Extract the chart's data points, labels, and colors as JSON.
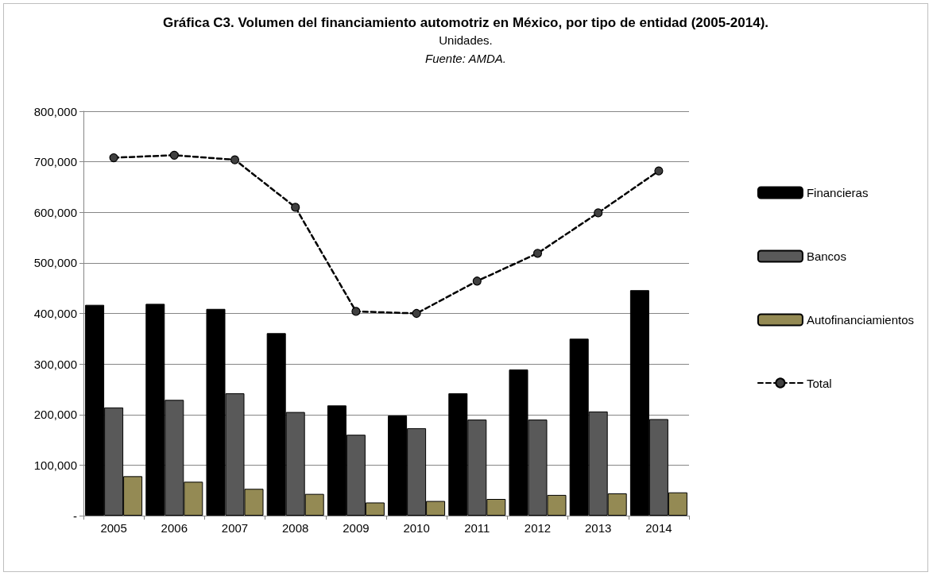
{
  "chart_data": {
    "type": "bar",
    "title": "Gráfica C3. Volumen del financiamiento automotriz en México, por tipo de entidad (2005-2014).",
    "subtitle": "Unidades.",
    "annotations": [
      "Fuente: AMDA."
    ],
    "categories": [
      "2005",
      "2006",
      "2007",
      "2008",
      "2009",
      "2010",
      "2011",
      "2012",
      "2013",
      "2014"
    ],
    "series": [
      {
        "name": "Financieras",
        "color": "#000000",
        "values": [
          417000,
          419000,
          409000,
          361000,
          218000,
          198000,
          242000,
          289000,
          350000,
          446000
        ]
      },
      {
        "name": "Bancos",
        "color": "#595959",
        "values": [
          214000,
          229000,
          242000,
          205000,
          160000,
          173000,
          190000,
          190000,
          206000,
          191000
        ]
      },
      {
        "name": "Autofinanciamientos",
        "color": "#948a54",
        "values": [
          78000,
          67000,
          53000,
          43000,
          26000,
          29000,
          33000,
          41000,
          44000,
          46000
        ]
      },
      {
        "name": "Total",
        "type": "line",
        "color": "#000000",
        "marker": "circle",
        "line_style": "dashed",
        "values": [
          708000,
          713000,
          704000,
          610000,
          404000,
          400000,
          464000,
          519000,
          599000,
          682000
        ]
      }
    ],
    "ylim": [
      0,
      800000
    ],
    "yticks": [
      {
        "value": 0,
        "label": "-"
      },
      {
        "value": 100000,
        "label": "100,000"
      },
      {
        "value": 200000,
        "label": "200,000"
      },
      {
        "value": 300000,
        "label": "300,000"
      },
      {
        "value": 400000,
        "label": "400,000"
      },
      {
        "value": 500000,
        "label": "500,000"
      },
      {
        "value": 600000,
        "label": "600,000"
      },
      {
        "value": 700000,
        "label": "700,000"
      },
      {
        "value": 800000,
        "label": "800,000"
      }
    ],
    "grid": "y",
    "legend": "right"
  }
}
